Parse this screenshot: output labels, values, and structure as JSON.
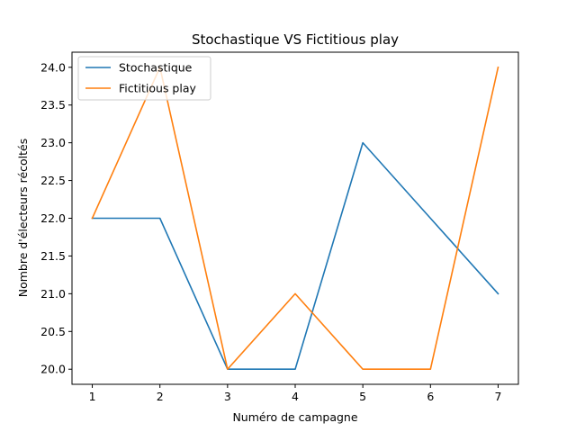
{
  "chart_data": {
    "type": "line",
    "title": "Stochastique VS Fictitious play",
    "xlabel": "Numéro de campagne",
    "ylabel": "Nombre d'électeurs récoltés",
    "x": [
      1,
      2,
      3,
      4,
      5,
      6,
      7
    ],
    "xlim": [
      0.7,
      7.3
    ],
    "ylim": [
      19.8,
      24.2
    ],
    "xticks": [
      "1",
      "2",
      "3",
      "4",
      "5",
      "6",
      "7"
    ],
    "yticks": [
      "20.0",
      "20.5",
      "21.0",
      "21.5",
      "22.0",
      "22.5",
      "23.0",
      "23.5",
      "24.0"
    ],
    "grid": false,
    "legend_position": "top-left",
    "series": [
      {
        "name": "Stochastique",
        "color": "#1f77b4",
        "values": [
          22,
          22,
          20,
          20,
          23,
          22,
          21
        ]
      },
      {
        "name": "Fictitious play",
        "color": "#ff7f0e",
        "values": [
          22,
          24,
          20,
          21,
          20,
          20,
          24
        ]
      }
    ]
  }
}
